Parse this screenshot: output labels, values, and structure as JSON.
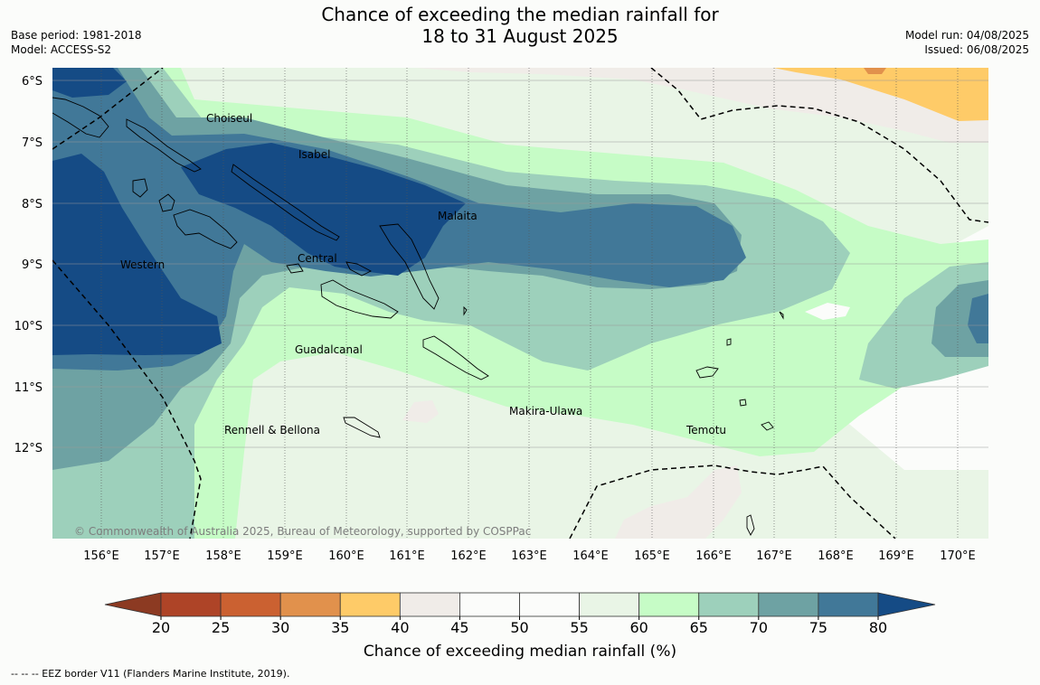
{
  "header": {
    "title_line1": "Chance of exceeding the median rainfall for",
    "title_line2": "18 to 31 August 2025",
    "base_period": "Base period: 1981-2018",
    "model": "Model: ACCESS-S2",
    "model_run": "Model run: 04/08/2025",
    "issued": "Issued: 06/08/2025"
  },
  "map": {
    "lat_labels": [
      "6°S",
      "7°S",
      "8°S",
      "9°S",
      "10°S",
      "11°S",
      "12°S"
    ],
    "lon_labels": [
      "156°E",
      "157°E",
      "158°E",
      "159°E",
      "160°E",
      "161°E",
      "162°E",
      "163°E",
      "164°E",
      "165°E",
      "166°E",
      "167°E",
      "168°E",
      "169°E",
      "170°E"
    ],
    "regions": [
      "Choiseul",
      "Isabel",
      "Malaita",
      "Central",
      "Western",
      "Guadalcanal",
      "Makira-Ulawa",
      "Rennell & Bellona",
      "Temotu"
    ],
    "copyright": "© Commonwealth of Australia 2025, Bureau of Meteorology, supported by COSPPac"
  },
  "colorbar": {
    "ticks": [
      "20",
      "25",
      "30",
      "35",
      "40",
      "45",
      "50",
      "55",
      "60",
      "65",
      "70",
      "75",
      "80"
    ],
    "colors": [
      "#ae4427",
      "#cb6131",
      "#e1914c",
      "#fecb68",
      "#f0ece8",
      "#fbfcfa",
      "#fbfcfa",
      "#e9f5e6",
      "#c6fcc6",
      "#9dd0bb",
      "#6ea2a3",
      "#417898"
    ],
    "low_color": "#8c3a22",
    "high_color": "#154b85",
    "label": "Chance of exceeding median rainfall (%)"
  },
  "footnote": "--  --  -- EEZ border V11 (Flanders Marine Institute, 2019)."
}
